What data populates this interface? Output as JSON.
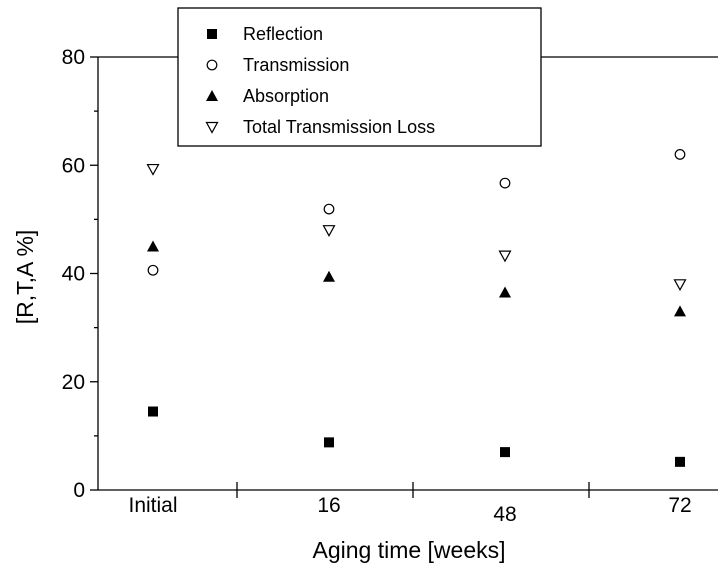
{
  "chart_data": {
    "type": "scatter",
    "categories": [
      "Initial",
      "16",
      "48",
      "72"
    ],
    "xlabel": "Aging time [weeks]",
    "ylabel": "[R,T,A %]",
    "ylim": [
      0,
      80
    ],
    "yticks": [
      0,
      20,
      40,
      60,
      80
    ],
    "grid": false,
    "legend_position": "top-center",
    "series": [
      {
        "name": "Reflection",
        "marker": "filled-square",
        "values": [
          14.5,
          8.8,
          7.0,
          5.2
        ]
      },
      {
        "name": "Transmission",
        "marker": "open-circle",
        "values": [
          40.6,
          51.9,
          56.7,
          62.0
        ]
      },
      {
        "name": "Absorption",
        "marker": "filled-triangle-up",
        "values": [
          45.0,
          39.4,
          36.5,
          33.0
        ]
      },
      {
        "name": "Total Transmission Loss",
        "marker": "open-triangle-down",
        "values": [
          59.3,
          48.0,
          43.3,
          38.0
        ]
      }
    ]
  }
}
